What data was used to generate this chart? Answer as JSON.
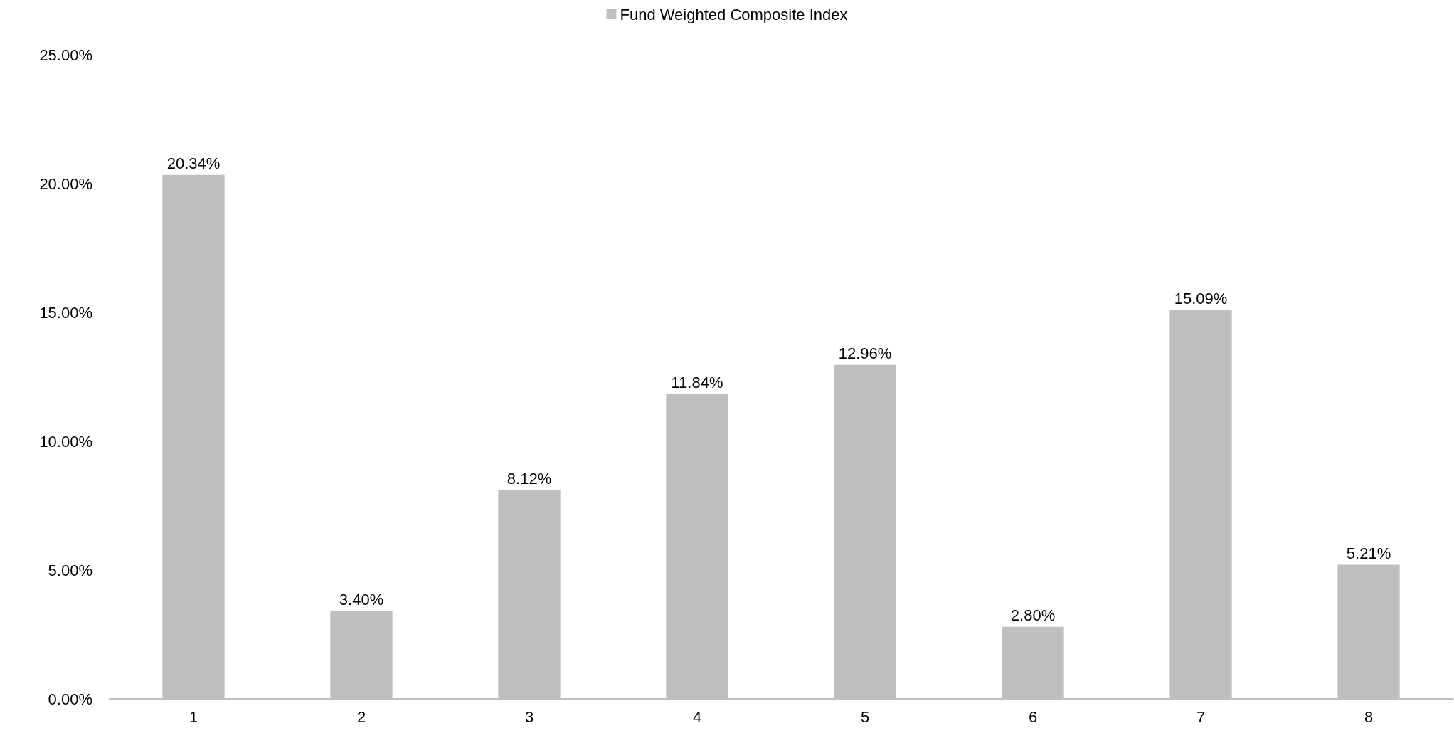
{
  "chart_data": {
    "type": "bar",
    "categories": [
      "1",
      "2",
      "3",
      "4",
      "5",
      "6",
      "7",
      "8"
    ],
    "series": [
      {
        "name": "Fund Weighted Composite Index",
        "color": "#bfbfbf",
        "values": [
          20.34,
          3.4,
          8.12,
          11.84,
          12.96,
          2.8,
          15.09,
          5.21
        ],
        "value_labels": [
          "20.34%",
          "3.40%",
          "8.12%",
          "11.84%",
          "12.96%",
          "2.80%",
          "15.09%",
          "5.21%"
        ]
      }
    ],
    "ylim": [
      0,
      25
    ],
    "yticks": [
      {
        "value": 0,
        "label": "0.00%"
      },
      {
        "value": 5,
        "label": "5.00%"
      },
      {
        "value": 10,
        "label": "10.00%"
      },
      {
        "value": 15,
        "label": "15.00%"
      },
      {
        "value": 20,
        "label": "20.00%"
      },
      {
        "value": 25,
        "label": "25.00%"
      }
    ],
    "grid": false,
    "legend": "top"
  }
}
